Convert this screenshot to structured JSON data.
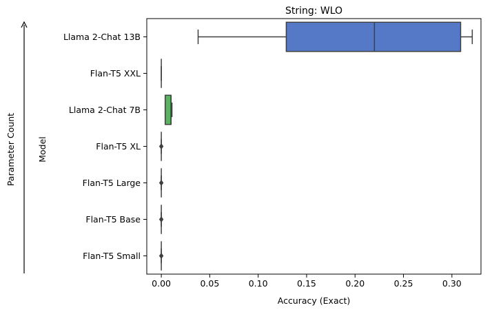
{
  "chart_data": {
    "type": "box",
    "title": "String: WLO",
    "xlabel": "Accuracy (Exact)",
    "ylabel": "Model",
    "side_label": "Parameter Count",
    "xlim": [
      -0.015,
      0.33
    ],
    "xticks": [
      0.0,
      0.05,
      0.1,
      0.15,
      0.2,
      0.25,
      0.3
    ],
    "xtick_labels": [
      "0.00",
      "0.05",
      "0.10",
      "0.15",
      "0.20",
      "0.25",
      "0.30"
    ],
    "orientation": "horizontal",
    "grid": false,
    "categories": [
      "Llama 2-Chat 13B",
      "Flan-T5 XXL",
      "Llama 2-Chat 7B",
      "Flan-T5 XL",
      "Flan-T5 Large",
      "Flan-T5 Base",
      "Flan-T5 Small"
    ],
    "boxes": [
      {
        "category": "Llama 2-Chat 13B",
        "whisker_low": 0.038,
        "q1": 0.129,
        "median": 0.22,
        "q3": 0.309,
        "whisker_high": 0.321,
        "outliers": [],
        "color": "#5579c6"
      },
      {
        "category": "Flan-T5 XXL",
        "whisker_low": 0.0,
        "q1": 0.0,
        "median": 0.0,
        "q3": 0.0,
        "whisker_high": 0.0,
        "outliers": [],
        "color": "#c9854f"
      },
      {
        "category": "Llama 2-Chat 7B",
        "whisker_low": 0.004,
        "q1": 0.004,
        "median": 0.01,
        "q3": 0.01,
        "whisker_high": 0.011,
        "outliers": [],
        "color": "#5bb260"
      },
      {
        "category": "Flan-T5 XL",
        "whisker_low": 0.0,
        "q1": 0.0,
        "median": 0.0,
        "q3": 0.0,
        "whisker_high": 0.0,
        "outliers": [
          0.0
        ],
        "color": "#c44e52"
      },
      {
        "category": "Flan-T5 Large",
        "whisker_low": 0.0,
        "q1": 0.0,
        "median": 0.0,
        "q3": 0.0,
        "whisker_high": 0.0,
        "outliers": [
          0.0
        ],
        "color": "#8172b3"
      },
      {
        "category": "Flan-T5 Base",
        "whisker_low": 0.0,
        "q1": 0.0,
        "median": 0.0,
        "q3": 0.0,
        "whisker_high": 0.0,
        "outliers": [
          0.0
        ],
        "color": "#937860"
      },
      {
        "category": "Flan-T5 Small",
        "whisker_low": 0.0,
        "q1": 0.0,
        "median": 0.0,
        "q3": 0.0,
        "whisker_high": 0.0,
        "outliers": [
          0.0
        ],
        "color": "#da8bc3"
      }
    ]
  }
}
